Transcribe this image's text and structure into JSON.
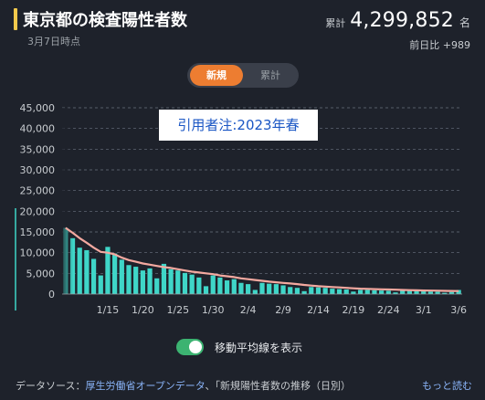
{
  "header": {
    "title": "東京都の検査陽性者数",
    "subtitle": "3月7日時点",
    "total_label": "累計",
    "total_value": "4,299,852",
    "total_unit": "名",
    "diff_text": "前日比 +989"
  },
  "tabs": {
    "new_label": "新規",
    "cumulative_label": "累計"
  },
  "annotation": "引用者注:2023年春",
  "toggle": {
    "label": "移動平均線を表示",
    "on": true
  },
  "footer": {
    "source_prefix": "データソース：",
    "source_link": "厚生労働省オープンデータ",
    "source_rest": "、「新規陽性者数の推移（日別）",
    "more_label": "もっと読む"
  },
  "colors": {
    "bar": "#3fd6c8",
    "average_line": "#f4a9a0",
    "accent": "#ed7d31"
  },
  "chart_data": {
    "type": "bar",
    "y_ticks": [
      "0",
      "5,000",
      "10,000",
      "15,000",
      "20,000",
      "25,000",
      "30,000",
      "35,000",
      "40,000",
      "45,000"
    ],
    "ylim": [
      0,
      45000
    ],
    "x_tick_labels": [
      "1/15",
      "1/20",
      "1/25",
      "1/30",
      "2/4",
      "2/9",
      "2/14",
      "2/19",
      "2/24",
      "3/1",
      "3/6"
    ],
    "x_tick_positions": [
      6,
      11,
      16,
      21,
      26,
      31,
      36,
      41,
      46,
      51,
      56
    ],
    "series": [
      {
        "type": "bar",
        "values": [
          16000,
          13500,
          11200,
          10600,
          8500,
          4500,
          11400,
          9800,
          8300,
          7000,
          6600,
          5700,
          6200,
          3800,
          7300,
          6000,
          5700,
          5100,
          4700,
          4000,
          1900,
          4500,
          4000,
          3300,
          3600,
          2700,
          2400,
          1000,
          2700,
          2500,
          2400,
          2100,
          1700,
          1500,
          700,
          1700,
          1600,
          1500,
          1300,
          1200,
          1100,
          600,
          1000,
          1000,
          900,
          850,
          800,
          400,
          800,
          750,
          700,
          650,
          600,
          550,
          300,
          500,
          989
        ]
      },
      {
        "type": "line",
        "values": [
          16000,
          14800,
          13500,
          12400,
          11200,
          10200,
          10000,
          9600,
          8800,
          8200,
          7800,
          7400,
          7100,
          6800,
          6500,
          6300,
          6000,
          5700,
          5400,
          5200,
          5000,
          4800,
          4500,
          4300,
          4100,
          3800,
          3600,
          3400,
          3200,
          3000,
          2850,
          2700,
          2550,
          2400,
          2200,
          2050,
          1900,
          1800,
          1700,
          1600,
          1500,
          1400,
          1300,
          1250,
          1200,
          1150,
          1100,
          1050,
          1000,
          950,
          900,
          870,
          840,
          810,
          780,
          750,
          720
        ]
      }
    ],
    "grid": true
  }
}
